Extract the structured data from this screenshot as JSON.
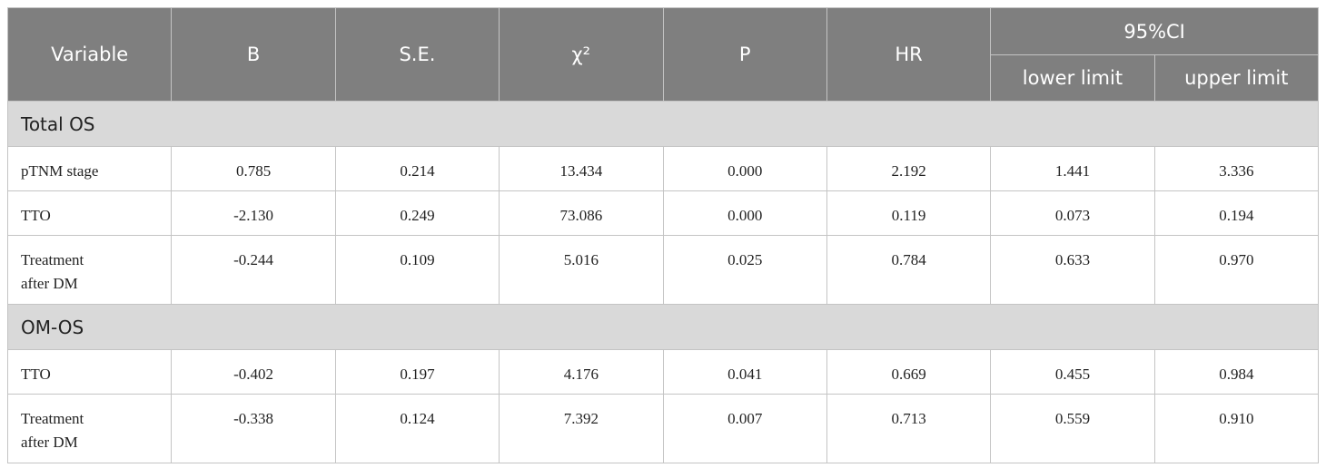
{
  "table": {
    "header": {
      "columns": [
        "Variable",
        "B",
        "S.E.",
        "χ²",
        "P",
        "HR",
        "95%CI"
      ],
      "subcolumns": [
        "lower limit",
        "upper limit"
      ]
    },
    "sections": [
      {
        "title": "Total OS",
        "rows": [
          [
            "pTNM stage",
            "0.785",
            "0.214",
            "13.434",
            "0.000",
            "2.192",
            "1.441",
            "3.336"
          ],
          [
            "TTO",
            "-2.130",
            "0.249",
            "73.086",
            "0.000",
            "0.119",
            "0.073",
            "0.194"
          ],
          [
            "Treatment after DM",
            "-0.244",
            "0.109",
            "5.016",
            "0.025",
            "0.784",
            "0.633",
            "0.970"
          ]
        ]
      },
      {
        "title": "OM-OS",
        "rows": [
          [
            "TTO",
            "-0.402",
            "0.197",
            "4.176",
            "0.041",
            "0.669",
            "0.455",
            "0.984"
          ],
          [
            "Treatment after DM",
            "-0.338",
            "0.124",
            "7.392",
            "0.007",
            "0.713",
            "0.559",
            "0.910"
          ]
        ]
      }
    ]
  }
}
